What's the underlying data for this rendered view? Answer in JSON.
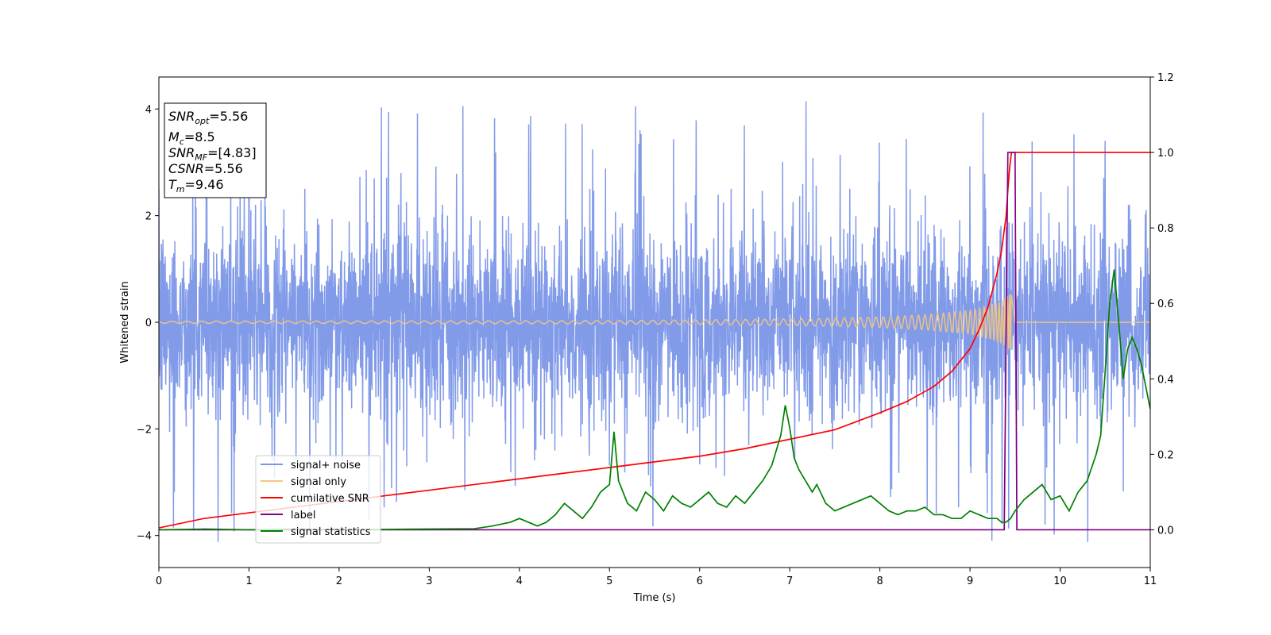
{
  "chart_data": {
    "type": "line",
    "xlabel": "Time (s)",
    "ylabel": "Whitened strain",
    "xlim": [
      0,
      11
    ],
    "ylim": [
      -4.6,
      4.6
    ],
    "y2lim": [
      -0.1,
      1.2
    ],
    "x_ticks": [
      "0",
      "1",
      "2",
      "3",
      "4",
      "5",
      "6",
      "7",
      "8",
      "9",
      "10",
      "11"
    ],
    "y_ticks": [
      "4",
      "2",
      "0",
      "−2",
      "−4"
    ],
    "y2_ticks": [
      "1.2",
      "1.0",
      "0.8",
      "0.6",
      "0.4",
      "0.2",
      "0.0"
    ],
    "legend_position": "lower-left",
    "annotation": {
      "snr_opt": {
        "sym": "SNR",
        "sub": "opt",
        "value": "=5.56"
      },
      "mc": {
        "sym": "M",
        "sub": "c",
        "value": "=8.5"
      },
      "snr_mf": {
        "sym": "SNR",
        "sub": "MF",
        "value": "=[4.83]"
      },
      "csnr": {
        "sym": "CSNR",
        "sub": "",
        "value": "=5.56"
      },
      "tm": {
        "sym": "T",
        "sub": "m",
        "value": "=9.46"
      }
    },
    "series": [
      {
        "name": "signal+ noise",
        "color": "#7b96e8",
        "axis": "left",
        "kind": "noise",
        "typical_amplitude": 1.8,
        "peak_amplitude": 4.15,
        "x_range": [
          0,
          11
        ]
      },
      {
        "name": "signal only",
        "color": "#f5c77e",
        "axis": "left",
        "kind": "chirp",
        "merger_time": 9.46,
        "amplitude_envelope": [
          [
            0,
            0.02
          ],
          [
            5,
            0.03
          ],
          [
            7,
            0.06
          ],
          [
            8,
            0.1
          ],
          [
            8.5,
            0.14
          ],
          [
            9,
            0.22
          ],
          [
            9.2,
            0.3
          ],
          [
            9.35,
            0.4
          ],
          [
            9.46,
            0.55
          ],
          [
            9.5,
            0
          ]
        ]
      },
      {
        "name": "cumilative SNR",
        "color": "#ff0000",
        "axis": "right",
        "x": [
          0,
          0.5,
          1,
          1.5,
          2,
          2.5,
          3,
          3.5,
          4,
          4.5,
          5,
          5.5,
          6,
          6.5,
          7,
          7.5,
          8,
          8.3,
          8.6,
          8.8,
          9.0,
          9.1,
          9.2,
          9.3,
          9.35,
          9.4,
          9.42,
          9.44,
          9.46,
          9.5,
          11
        ],
        "values": [
          0.005,
          0.03,
          0.045,
          0.06,
          0.075,
          0.09,
          0.105,
          0.12,
          0.135,
          0.15,
          0.165,
          0.18,
          0.195,
          0.215,
          0.24,
          0.265,
          0.31,
          0.34,
          0.38,
          0.42,
          0.48,
          0.53,
          0.59,
          0.68,
          0.74,
          0.83,
          0.9,
          0.96,
          1.0,
          1.0,
          1.0
        ]
      },
      {
        "name": "label",
        "color": "#800080",
        "axis": "right",
        "x": [
          0,
          9.38,
          9.42,
          9.5,
          9.52,
          11
        ],
        "values": [
          0,
          0,
          1,
          1,
          0,
          0
        ]
      },
      {
        "name": "signal statistics",
        "color": "#008000",
        "axis": "right",
        "x": [
          0,
          0.5,
          1,
          1.5,
          2,
          2.5,
          3,
          3.5,
          3.7,
          3.9,
          4.0,
          4.1,
          4.2,
          4.3,
          4.4,
          4.5,
          4.6,
          4.7,
          4.8,
          4.9,
          5.0,
          5.05,
          5.1,
          5.2,
          5.3,
          5.4,
          5.5,
          5.6,
          5.7,
          5.8,
          5.9,
          6.0,
          6.1,
          6.2,
          6.3,
          6.4,
          6.5,
          6.6,
          6.7,
          6.8,
          6.9,
          6.95,
          7.0,
          7.05,
          7.1,
          7.2,
          7.25,
          7.3,
          7.4,
          7.5,
          7.6,
          7.7,
          7.8,
          7.9,
          8.0,
          8.1,
          8.2,
          8.3,
          8.4,
          8.5,
          8.6,
          8.7,
          8.8,
          8.9,
          9.0,
          9.1,
          9.2,
          9.3,
          9.35,
          9.4,
          9.45,
          9.5,
          9.6,
          9.7,
          9.8,
          9.9,
          10.0,
          10.1,
          10.2,
          10.3,
          10.4,
          10.45,
          10.5,
          10.55,
          10.6,
          10.65,
          10.7,
          10.75,
          10.8,
          10.85,
          10.9,
          10.95,
          11.0
        ],
        "values": [
          0,
          0.002,
          0.0,
          0.002,
          0.0,
          0.001,
          0.002,
          0.003,
          0.01,
          0.02,
          0.03,
          0.02,
          0.01,
          0.02,
          0.04,
          0.07,
          0.05,
          0.03,
          0.06,
          0.1,
          0.12,
          0.26,
          0.13,
          0.07,
          0.05,
          0.1,
          0.08,
          0.05,
          0.09,
          0.07,
          0.06,
          0.08,
          0.1,
          0.07,
          0.06,
          0.09,
          0.07,
          0.1,
          0.13,
          0.17,
          0.25,
          0.33,
          0.27,
          0.19,
          0.16,
          0.12,
          0.1,
          0.12,
          0.07,
          0.05,
          0.06,
          0.07,
          0.08,
          0.09,
          0.07,
          0.05,
          0.04,
          0.05,
          0.05,
          0.06,
          0.04,
          0.04,
          0.03,
          0.03,
          0.05,
          0.04,
          0.03,
          0.03,
          0.02,
          0.02,
          0.03,
          0.05,
          0.08,
          0.1,
          0.12,
          0.08,
          0.09,
          0.05,
          0.1,
          0.13,
          0.2,
          0.25,
          0.42,
          0.6,
          0.69,
          0.55,
          0.4,
          0.48,
          0.51,
          0.48,
          0.44,
          0.38,
          0.32
        ]
      }
    ]
  }
}
